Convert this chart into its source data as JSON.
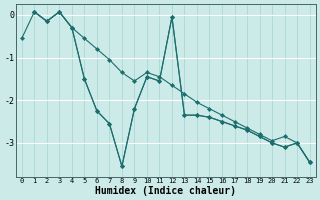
{
  "xlabel": "Humidex (Indice chaleur)",
  "bg_color": "#cceae8",
  "line_color": "#1c6e6e",
  "grid_color_h": "#ffffff",
  "grid_color_v": "#aad8d5",
  "xlim": [
    -0.5,
    23.5
  ],
  "ylim": [
    -3.8,
    0.25
  ],
  "yticks": [
    0,
    -1,
    -2,
    -3
  ],
  "xticks": [
    0,
    1,
    2,
    3,
    4,
    5,
    6,
    7,
    8,
    9,
    10,
    11,
    12,
    13,
    14,
    15,
    16,
    17,
    18,
    19,
    20,
    21,
    22,
    23
  ],
  "series": [
    [
      null,
      0.07,
      -0.15,
      0.07,
      -0.3,
      -0.55,
      -0.8,
      -1.05,
      -1.35,
      -1.55,
      -1.35,
      -1.45,
      -1.65,
      -1.85,
      -2.05,
      -2.2,
      -2.35,
      -2.5,
      -2.65,
      -2.8,
      -2.95,
      -2.85,
      -3.0,
      -3.45
    ],
    [
      null,
      0.07,
      -0.15,
      0.07,
      -0.3,
      -1.5,
      -2.25,
      -2.55,
      -3.55,
      -2.2,
      -1.45,
      -1.55,
      -0.05,
      -2.35,
      -2.35,
      -2.4,
      -2.5,
      -2.6,
      -2.7,
      -2.85,
      -3.0,
      -3.1,
      -3.0,
      -3.45
    ],
    [
      -0.55,
      0.07,
      -0.15,
      0.07,
      -0.3,
      -1.5,
      -2.25,
      -2.55,
      -3.55,
      -2.2,
      -1.45,
      -1.55,
      -0.05,
      -2.35,
      -2.35,
      -2.4,
      -2.5,
      -2.6,
      -2.7,
      -2.85,
      -3.0,
      -3.1,
      -3.0,
      -3.45
    ]
  ]
}
